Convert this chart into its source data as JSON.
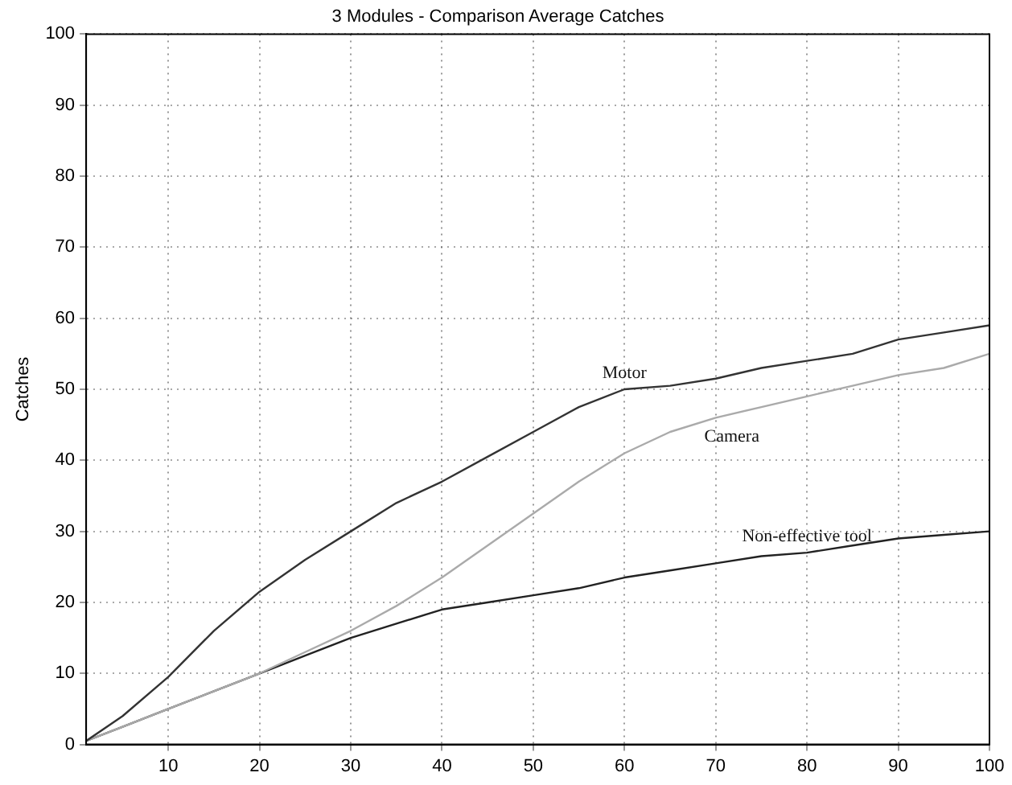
{
  "chart_data": {
    "type": "line",
    "title": "3 Modules - Comparison Average Catches",
    "ylabel": "Catches",
    "x": [
      1,
      5,
      10,
      15,
      20,
      25,
      30,
      35,
      40,
      45,
      50,
      55,
      60,
      65,
      70,
      75,
      80,
      85,
      90,
      95,
      100
    ],
    "series": [
      {
        "name": "Motor",
        "color": "#333333",
        "values": [
          0.5,
          4,
          9.5,
          16,
          21.5,
          26,
          30,
          34,
          37,
          40.5,
          44,
          47.5,
          50,
          50.5,
          51.5,
          53,
          54,
          55,
          57,
          58,
          59
        ]
      },
      {
        "name": "Camera",
        "color": "#aaaaaa",
        "values": [
          0.5,
          2.5,
          5,
          7.5,
          10,
          13,
          16,
          19.5,
          23.5,
          28,
          32.5,
          37,
          41,
          44,
          46,
          47.5,
          49,
          50.5,
          52,
          53,
          55
        ]
      },
      {
        "name": "Non-effective tool",
        "color": "#222222",
        "values": [
          0.5,
          2.5,
          5,
          7.5,
          10,
          12.5,
          15,
          17,
          19,
          20,
          21,
          22,
          23.5,
          24.5,
          25.5,
          26.5,
          27,
          28,
          29,
          29.5,
          30
        ]
      }
    ],
    "xlim": [
      1,
      100
    ],
    "xticks": [
      10,
      20,
      30,
      40,
      50,
      60,
      70,
      80,
      90,
      100
    ],
    "ylim": [
      0,
      100
    ],
    "yticks": [
      0,
      10,
      20,
      30,
      40,
      50,
      60,
      70,
      80,
      90,
      100
    ],
    "grid": true,
    "legend": false,
    "marker": "none",
    "line_style": "solid"
  }
}
